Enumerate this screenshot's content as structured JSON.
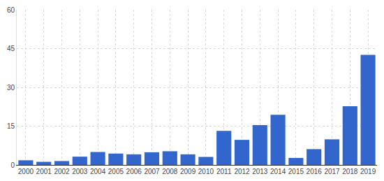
{
  "chart_data": {
    "type": "bar",
    "categories": [
      "2000",
      "2001",
      "2002",
      "2003",
      "2004",
      "2005",
      "2006",
      "2007",
      "2008",
      "2009",
      "2010",
      "2011",
      "2012",
      "2013",
      "2014",
      "2015",
      "2016",
      "2017",
      "2018",
      "2019"
    ],
    "values": [
      1.8,
      1.2,
      1.5,
      3.2,
      5.0,
      4.4,
      4.1,
      4.9,
      5.3,
      4.1,
      3.1,
      13.2,
      9.7,
      15.4,
      19.4,
      2.7,
      6.1,
      9.9,
      22.7,
      42.6
    ],
    "color": "#3366cc",
    "ylim": [
      0,
      60
    ],
    "yticks": [
      0,
      15,
      30,
      45,
      60
    ],
    "grid": true
  }
}
